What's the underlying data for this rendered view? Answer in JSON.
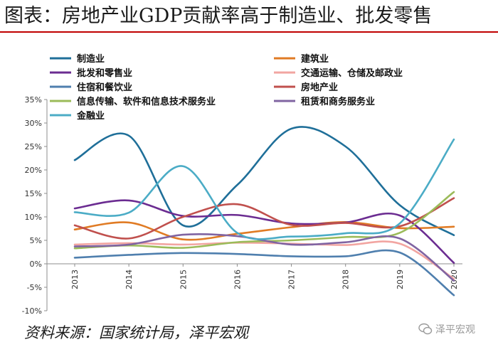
{
  "title": "图表：房地产业GDP贡献率高于制造业、批发零售",
  "source": "资料来源：国家统计局，泽平宏观",
  "watermark": "泽平宏观",
  "chart_data": {
    "type": "line",
    "x": [
      "2013",
      "2014",
      "2015",
      "2016",
      "2017",
      "2018",
      "2019",
      "2020"
    ],
    "y_tick_labels": [
      "35%",
      "30%",
      "25%",
      "20%",
      "15%",
      "10%",
      "5%",
      "0%",
      "-5%",
      "-10%"
    ],
    "ylim": [
      -10,
      35
    ],
    "grid": false,
    "legend_placement": "top, two columns",
    "series": [
      {
        "name": "制造业",
        "color": "#1f6f99",
        "values": [
          22.1,
          27.3,
          8.2,
          16.8,
          28.8,
          25.0,
          12.5,
          6.1
        ]
      },
      {
        "name": "建筑业",
        "color": "#e07b24",
        "values": [
          7.3,
          8.8,
          5.2,
          6.4,
          7.8,
          8.9,
          7.6,
          7.9
        ]
      },
      {
        "name": "批发和零售业",
        "color": "#6b2c91",
        "values": [
          11.8,
          13.5,
          10.2,
          10.4,
          8.6,
          8.8,
          10.3,
          0.2
        ]
      },
      {
        "name": "交通运输、仓储及邮政业",
        "color": "#f2a5a1",
        "values": [
          4.1,
          4.4,
          4.1,
          4.5,
          4.3,
          4.0,
          4.3,
          -3.2
        ]
      },
      {
        "name": "住宿和餐饮业",
        "color": "#4f7fae",
        "values": [
          1.3,
          1.9,
          2.3,
          2.1,
          1.6,
          1.6,
          2.4,
          -6.7
        ]
      },
      {
        "name": "房地产业",
        "color": "#c0504d",
        "values": [
          8.2,
          5.4,
          10.0,
          12.7,
          8.3,
          8.7,
          8.0,
          14.0
        ]
      },
      {
        "name": "信息传输、软件和信息技术服务业",
        "color": "#9bbb59",
        "values": [
          3.3,
          3.9,
          3.4,
          4.6,
          5.0,
          5.7,
          6.6,
          15.3
        ]
      },
      {
        "name": "租赁和商务服务业",
        "color": "#8064a2",
        "values": [
          3.7,
          4.1,
          6.2,
          5.9,
          4.1,
          4.6,
          5.4,
          -3.6
        ]
      },
      {
        "name": "金融业",
        "color": "#4bacc6",
        "values": [
          11.0,
          10.9,
          20.8,
          6.6,
          5.8,
          6.5,
          8.6,
          26.5
        ]
      }
    ]
  }
}
